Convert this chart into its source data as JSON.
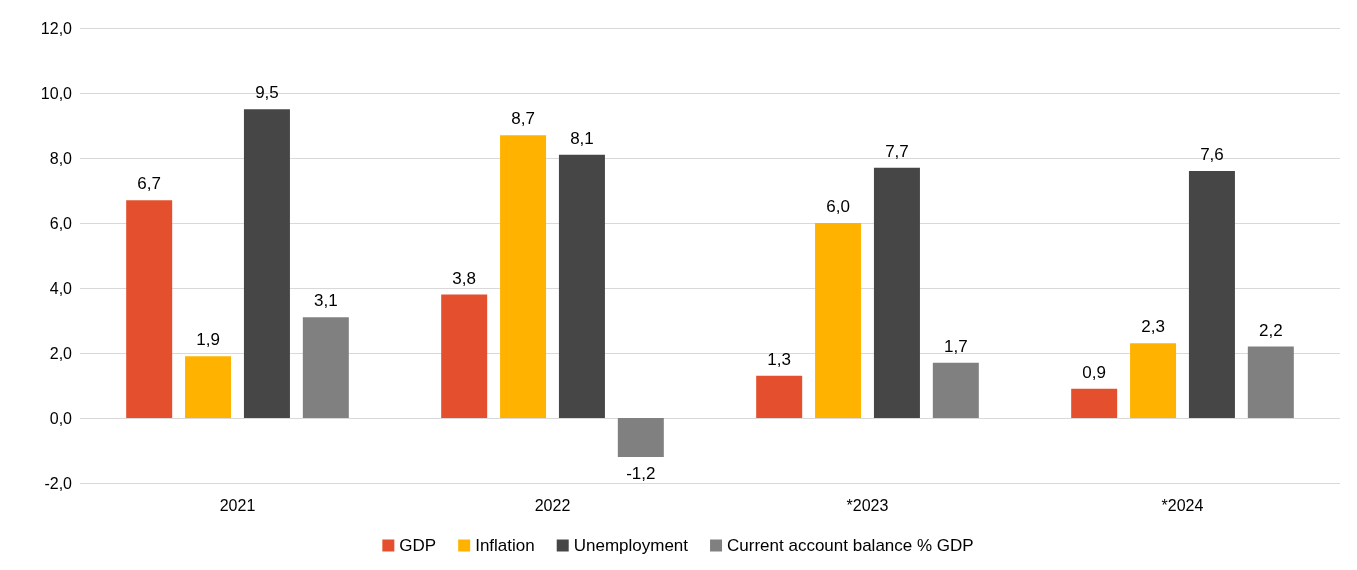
{
  "chart_data": {
    "type": "bar",
    "categories": [
      "2021",
      "2022",
      "*2023",
      "*2024"
    ],
    "series": [
      {
        "name": "GDP",
        "color": "#e4502d",
        "values": [
          6.7,
          3.8,
          1.3,
          0.9
        ],
        "value_labels": [
          "6,7",
          "3,8",
          "1,3",
          "0,9"
        ]
      },
      {
        "name": "Inflation",
        "color": "#ffb300",
        "values": [
          1.9,
          8.7,
          6.0,
          2.3
        ],
        "value_labels": [
          "1,9",
          "8,7",
          "6,0",
          "2,3"
        ]
      },
      {
        "name": "Unemployment",
        "color": "#464646",
        "values": [
          9.5,
          8.1,
          7.7,
          7.6
        ],
        "value_labels": [
          "9,5",
          "8,1",
          "7,7",
          "7,6"
        ]
      },
      {
        "name": "Current account balance % GDP",
        "color": "#808080",
        "values": [
          3.1,
          -1.2,
          1.7,
          2.2
        ],
        "value_labels": [
          "3,1",
          "-1,2",
          "1,7",
          "2,2"
        ]
      }
    ],
    "ylim": [
      -2,
      12
    ],
    "yticks": [
      {
        "value": -2,
        "label": "-2,0"
      },
      {
        "value": 0,
        "label": "0,0"
      },
      {
        "value": 2,
        "label": "2,0"
      },
      {
        "value": 4,
        "label": "4,0"
      },
      {
        "value": 6,
        "label": "6,0"
      },
      {
        "value": 8,
        "label": "8,0"
      },
      {
        "value": 10,
        "label": "10,0"
      },
      {
        "value": 12,
        "label": "12,0"
      }
    ],
    "grid": "y",
    "legend": "bottom"
  }
}
